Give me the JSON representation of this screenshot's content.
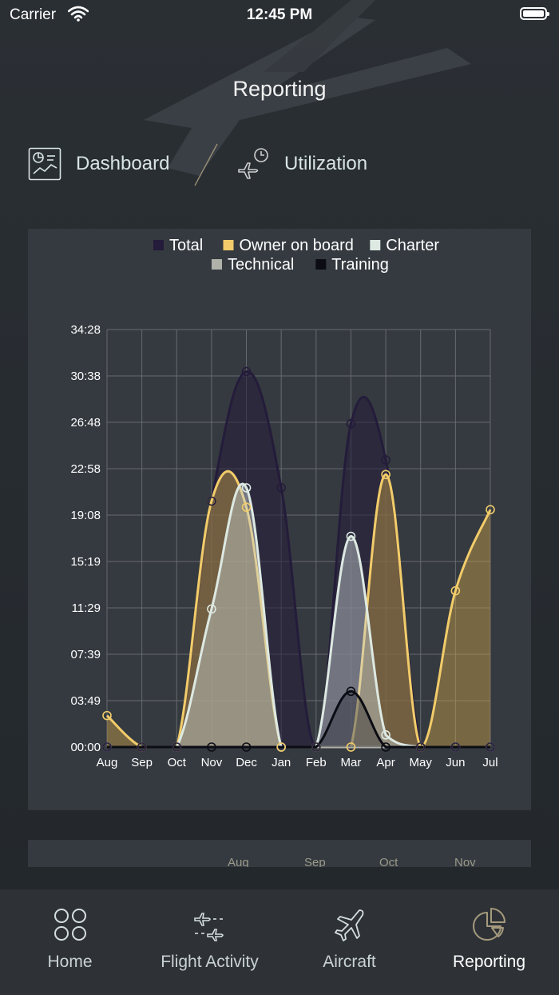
{
  "status": {
    "carrier": "Carrier",
    "time": "12:45 PM"
  },
  "header": {
    "title": "Reporting"
  },
  "segments": [
    {
      "label": "Dashboard",
      "icon": "dashboard-icon"
    },
    {
      "label": "Utilization",
      "icon": "plane-clock-icon"
    }
  ],
  "chart_data": {
    "type": "area",
    "categories": [
      "Aug",
      "Sep",
      "Oct",
      "Nov",
      "Dec",
      "Jan",
      "Feb",
      "Mar",
      "Apr",
      "May",
      "Jun",
      "Jul"
    ],
    "y_ticks": [
      "00:00",
      "03:49",
      "07:39",
      "11:29",
      "15:19",
      "19:08",
      "22:58",
      "26:48",
      "30:38",
      "34:28"
    ],
    "ylim_hours": [
      0,
      34.47
    ],
    "legend": {
      "placement": "top"
    },
    "series": [
      {
        "name": "Total",
        "color": "#241c3a",
        "values": [
          0,
          0,
          0,
          20.3,
          31.0,
          21.4,
          0,
          26.7,
          23.7,
          0,
          0,
          0
        ]
      },
      {
        "name": "Owner on board",
        "color": "#f2cc6a",
        "values": [
          2.6,
          0,
          0,
          20.3,
          19.8,
          0,
          0,
          0,
          22.5,
          0,
          12.9,
          19.6
        ]
      },
      {
        "name": "Charter",
        "color": "#dde9e2",
        "values": [
          0,
          0,
          0,
          11.4,
          21.4,
          0,
          0,
          17.4,
          1.0,
          0,
          0,
          0
        ]
      },
      {
        "name": "Technical",
        "color": "#b0b2aa",
        "values": [
          0,
          0,
          0,
          0,
          0,
          0,
          0,
          0,
          0,
          0,
          0,
          0
        ]
      },
      {
        "name": "Training",
        "color": "#0b0c14",
        "values": [
          0,
          0,
          0,
          0,
          0,
          0,
          0,
          4.6,
          0,
          0,
          0,
          0
        ]
      }
    ]
  },
  "bottom_card": {
    "labels": [
      "Aug",
      "Sep",
      "Oct",
      "Nov"
    ]
  },
  "tabs": [
    {
      "label": "Home",
      "icon": "home-grid-icon"
    },
    {
      "label": "Flight Activity",
      "icon": "flight-activity-icon"
    },
    {
      "label": "Aircraft",
      "icon": "aircraft-icon"
    },
    {
      "label": "Reporting",
      "icon": "reporting-pie-icon"
    }
  ]
}
